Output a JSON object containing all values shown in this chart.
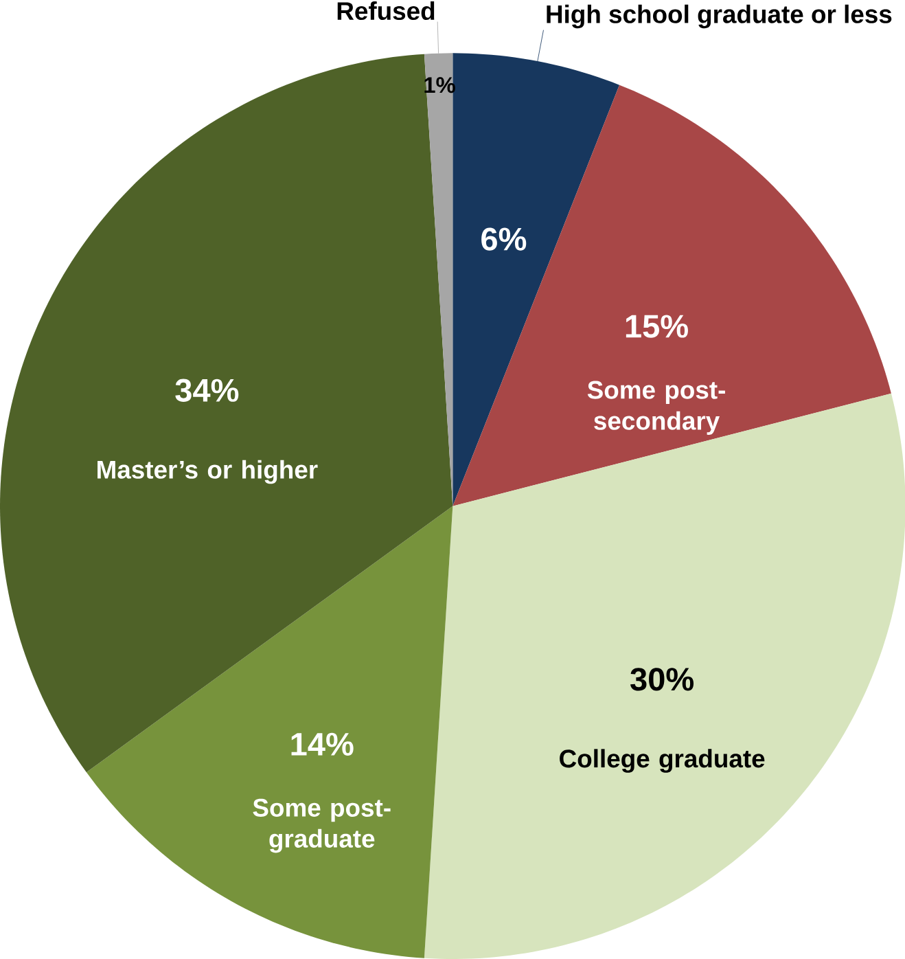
{
  "chart_data": {
    "type": "pie",
    "categories": [
      "High school graduate or less",
      "Some post-secondary",
      "College graduate",
      "Some post-graduate",
      "Master’s or higher",
      "Refused"
    ],
    "values": [
      6,
      15,
      30,
      14,
      34,
      1
    ],
    "colors": [
      "#17375e",
      "#a84747",
      "#d7e4bd",
      "#77933c",
      "#4f6228",
      "#a6a6a6"
    ],
    "value_labels": [
      "6%",
      "15%",
      "30%",
      "14%",
      "34%",
      "1%"
    ]
  }
}
